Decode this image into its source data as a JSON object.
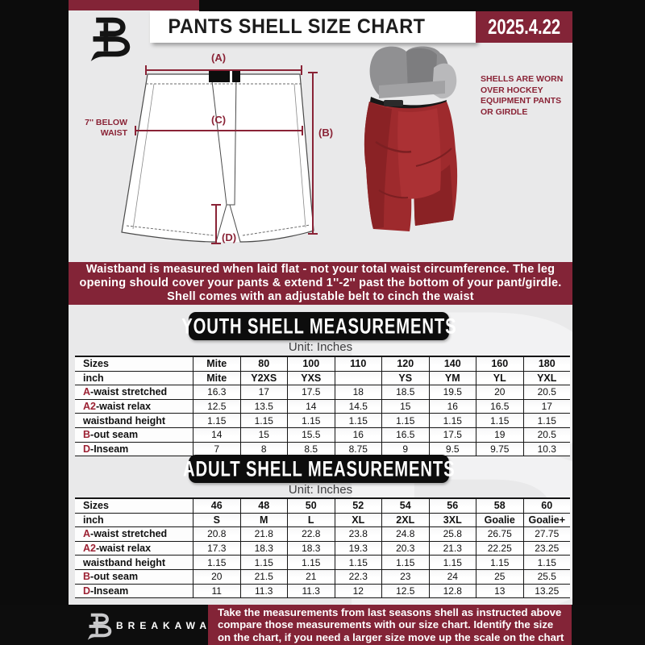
{
  "header": {
    "title": "PANTS SHELL SIZE CHART",
    "date": "2025.4.22"
  },
  "diagram": {
    "label_a": "(A)",
    "label_b": "(B)",
    "label_c": "(C)",
    "label_d": "(D)",
    "below_waist_lines": [
      "7'' BELOW",
      "WAIST"
    ],
    "shell_note_lines": [
      "SHELLS ARE WORN",
      "OVER HOCKEY",
      "EQUIPMENT PANTS",
      "OR GIRDLE"
    ]
  },
  "info_banner": {
    "lines": [
      "Waistband is measured when laid flat - not your total waist circumference. The leg",
      "opening should cover your pants & extend 1''-2'' past the bottom of your pant/girdle.",
      "Shell comes with an adjustable belt to cinch the waist"
    ]
  },
  "youth": {
    "title": "YOUTH SHELL MEASUREMENTS",
    "unit": "Unit: Inches",
    "rows": [
      {
        "header": true,
        "prefix": "",
        "label": "Sizes",
        "values": [
          "Mite",
          "80",
          "100",
          "110",
          "120",
          "140",
          "160",
          "180"
        ]
      },
      {
        "header": true,
        "prefix": "",
        "label": "inch",
        "values": [
          "Mite",
          "Y2XS",
          "YXS",
          "",
          "YS",
          "YM",
          "YL",
          "YXL"
        ]
      },
      {
        "header": false,
        "prefix": "A",
        "label": "-waist stretched",
        "values": [
          "16.3",
          "17",
          "17.5",
          "18",
          "18.5",
          "19.5",
          "20",
          "20.5"
        ]
      },
      {
        "header": false,
        "prefix": "A2",
        "label": "-waist relax",
        "values": [
          "12.5",
          "13.5",
          "14",
          "14.5",
          "15",
          "16",
          "16.5",
          "17"
        ]
      },
      {
        "header": false,
        "prefix": "",
        "label": "waistband height",
        "values": [
          "1.15",
          "1.15",
          "1.15",
          "1.15",
          "1.15",
          "1.15",
          "1.15",
          "1.15"
        ]
      },
      {
        "header": false,
        "prefix": "B",
        "label": "-out seam",
        "values": [
          "14",
          "15",
          "15.5",
          "16",
          "16.5",
          "17.5",
          "19",
          "20.5"
        ]
      },
      {
        "header": false,
        "prefix": "D",
        "label": "-Inseam",
        "values": [
          "7",
          "8",
          "8.5",
          "8.75",
          "9",
          "9.5",
          "9.75",
          "10.3"
        ]
      }
    ]
  },
  "adult": {
    "title": "ADULT SHELL MEASUREMENTS",
    "unit": "Unit: Inches",
    "rows": [
      {
        "header": true,
        "prefix": "",
        "label": "Sizes",
        "values": [
          "46",
          "48",
          "50",
          "52",
          "54",
          "56",
          "58",
          "60"
        ]
      },
      {
        "header": true,
        "prefix": "",
        "label": "inch",
        "values": [
          "S",
          "M",
          "L",
          "XL",
          "2XL",
          "3XL",
          "Goalie",
          "Goalie+"
        ]
      },
      {
        "header": false,
        "prefix": "A",
        "label": "-waist stretched",
        "values": [
          "20.8",
          "21.8",
          "22.8",
          "23.8",
          "24.8",
          "25.8",
          "26.75",
          "27.75"
        ]
      },
      {
        "header": false,
        "prefix": "A2",
        "label": "-waist relax",
        "values": [
          "17.3",
          "18.3",
          "18.3",
          "19.3",
          "20.3",
          "21.3",
          "22.25",
          "23.25"
        ]
      },
      {
        "header": false,
        "prefix": "",
        "label": "waistband height",
        "values": [
          "1.15",
          "1.15",
          "1.15",
          "1.15",
          "1.15",
          "1.15",
          "1.15",
          "1.15"
        ]
      },
      {
        "header": false,
        "prefix": "B",
        "label": "-out seam",
        "values": [
          "20",
          "21.5",
          "21",
          "22.3",
          "23",
          "24",
          "25",
          "25.5"
        ]
      },
      {
        "header": false,
        "prefix": "D",
        "label": "-Inseam",
        "values": [
          "11",
          "11.3",
          "11.3",
          "12",
          "12.5",
          "12.8",
          "13",
          "13.25"
        ]
      }
    ]
  },
  "footer": {
    "brand": "BREAKAWAY",
    "lines": [
      "Take the measurements from last seasons shell as instructed above",
      "compare those measurements  with our size chart. Identify the size",
      "on the chart, if you need a larger size move up the scale on the chart"
    ]
  },
  "watermark": {
    "letter": "B"
  },
  "colors": {
    "maroon": "#832437",
    "accent_text": "#8a2336",
    "page": "#e9e9ea",
    "black": "#0c0c0c"
  }
}
